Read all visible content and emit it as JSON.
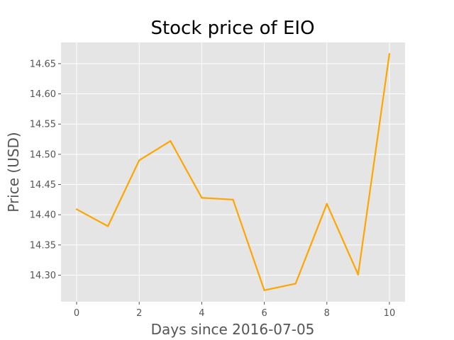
{
  "chart_data": {
    "type": "line",
    "title": "Stock price of EIO",
    "xlabel": "Days since 2016-07-05",
    "ylabel": "Price (USD)",
    "x": [
      0,
      1,
      2,
      3,
      4,
      5,
      6,
      7,
      8,
      9,
      10
    ],
    "series": [
      {
        "values": [
          14.409,
          14.381,
          14.49,
          14.522,
          14.428,
          14.425,
          14.275,
          14.286,
          14.418,
          14.301,
          14.666
        ],
        "color": "#ffa500"
      }
    ],
    "xlim": [
      -0.5,
      10.5
    ],
    "ylim": [
      14.256,
      14.685
    ],
    "xticks": [
      "0",
      "2",
      "4",
      "6",
      "8",
      "10"
    ],
    "yticks": [
      "14.30",
      "14.35",
      "14.40",
      "14.45",
      "14.50",
      "14.55",
      "14.60",
      "14.65"
    ],
    "grid": true,
    "style": "ggplot",
    "background_color": "#e5e5e5",
    "grid_color": "#ffffff"
  }
}
